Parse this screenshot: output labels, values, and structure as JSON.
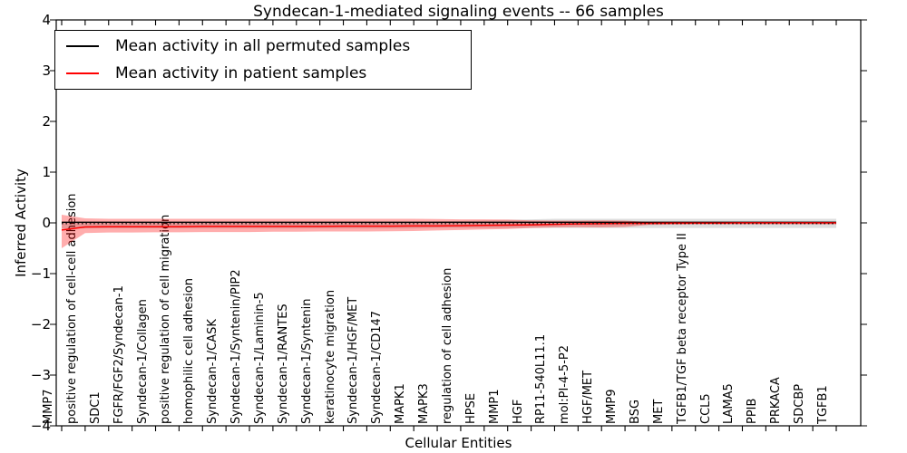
{
  "title": "Syndecan-1-mediated signaling events -- 66 samples",
  "axes": {
    "ylabel": "Inferred Activity",
    "xlabel": "Cellular Entities",
    "ytick_labels": [
      "4",
      "3",
      "2",
      "1",
      "0",
      "−1",
      "−2",
      "−3",
      "−4"
    ],
    "ylim": [
      -4,
      4
    ],
    "grid": false
  },
  "legend": {
    "position": "upper-left",
    "items": [
      {
        "label": "Mean activity in all permuted samples",
        "color": "#000000"
      },
      {
        "label": "Mean activity in patient samples",
        "color": "#ff0000"
      }
    ]
  },
  "chart_data": {
    "type": "line",
    "title": "Syndecan-1-mediated signaling events -- 66 samples",
    "xlabel": "Cellular Entities",
    "ylabel": "Inferred Activity",
    "ylim": [
      -4,
      4
    ],
    "legend_position": "upper left",
    "grid": false,
    "categories": [
      "MMP7",
      "positive regulation of cell-cell adhesion",
      "SDC1",
      "FGFR/FGF2/Syndecan-1",
      "Syndecan-1/Collagen",
      "positive regulation of cell migration",
      "homophilic cell adhesion",
      "Syndecan-1/CASK",
      "Syndecan-1/Syntenin/PIP2",
      "Syndecan-1/Laminin-5",
      "Syndecan-1/RANTES",
      "Syndecan-1/Syntenin",
      "keratinocyte migration",
      "Syndecan-1/HGF/MET",
      "Syndecan-1/CD147",
      "MAPK1",
      "MAPK3",
      "regulation of cell adhesion",
      "HPSE",
      "MMP1",
      "HGF",
      "RP11-540L11.1",
      "mol:PI-4-5-P2",
      "HGF/MET",
      "MMP9",
      "BSG",
      "MET",
      "TGFB1/TGF beta receptor Type II",
      "CCL5",
      "LAMA5",
      "PPIB",
      "PRKACA",
      "SDCBP",
      "TGFB1"
    ],
    "series": [
      {
        "name": "Mean activity in all permuted samples",
        "color": "#000000",
        "style": "solid",
        "values": [
          0,
          0,
          0,
          0,
          0,
          0,
          0,
          0,
          0,
          0,
          0,
          0,
          0,
          0,
          0,
          0,
          0,
          0,
          0,
          0,
          0,
          0,
          0,
          0,
          0,
          0,
          0,
          0,
          0,
          0,
          0,
          0,
          0,
          0
        ]
      },
      {
        "name": "Mean activity in patient samples",
        "color": "#ff0000",
        "style": "solid",
        "values": [
          -0.14,
          -0.08,
          -0.075,
          -0.075,
          -0.075,
          -0.075,
          -0.07,
          -0.07,
          -0.07,
          -0.07,
          -0.07,
          -0.07,
          -0.065,
          -0.065,
          -0.065,
          -0.06,
          -0.06,
          -0.055,
          -0.05,
          -0.045,
          -0.04,
          -0.03,
          -0.02,
          -0.015,
          -0.01,
          -0.01,
          -0.005,
          -0.005,
          -0.005,
          0,
          0,
          0,
          0,
          0
        ]
      }
    ],
    "bands": [
      {
        "name": "permuted-samples-std",
        "fill_color": "#000000",
        "fill_opacity": 0.13,
        "upper": [
          0.02,
          0.02,
          0.02,
          0.02,
          0.02,
          0.02,
          0.02,
          0.02,
          0.02,
          0.02,
          0.02,
          0.02,
          0.02,
          0.02,
          0.02,
          0.02,
          0.03,
          0.04,
          0.05,
          0.06,
          0.07,
          0.08,
          0.08,
          0.08,
          0.08,
          0.08,
          0.08,
          0.08,
          0.08,
          0.08,
          0.08,
          0.08,
          0.08,
          0.08
        ],
        "lower": [
          -0.11,
          -0.11,
          -0.11,
          -0.11,
          -0.11,
          -0.11,
          -0.11,
          -0.11,
          -0.11,
          -0.11,
          -0.11,
          -0.11,
          -0.11,
          -0.11,
          -0.11,
          -0.11,
          -0.1,
          -0.1,
          -0.1,
          -0.1,
          -0.1,
          -0.1,
          -0.1,
          -0.1,
          -0.1,
          -0.1,
          -0.1,
          -0.1,
          -0.1,
          -0.1,
          -0.1,
          -0.1,
          -0.1,
          -0.1
        ]
      },
      {
        "name": "patient-samples-std",
        "fill_color": "#ff0000",
        "fill_opacity": 0.32,
        "upper": [
          0.16,
          0.09,
          0.08,
          0.08,
          0.08,
          0.08,
          0.08,
          0.08,
          0.08,
          0.08,
          0.08,
          0.08,
          0.08,
          0.08,
          0.08,
          0.08,
          0.075,
          0.07,
          0.07,
          0.065,
          0.05,
          0.045,
          0.045,
          0.05,
          0.045,
          0.02,
          0.02,
          0.02,
          0.02,
          0.02,
          0.02,
          0.02,
          0.02,
          0.02
        ],
        "lower": [
          -0.5,
          -0.2,
          -0.19,
          -0.19,
          -0.185,
          -0.185,
          -0.18,
          -0.18,
          -0.18,
          -0.175,
          -0.175,
          -0.17,
          -0.17,
          -0.17,
          -0.165,
          -0.16,
          -0.15,
          -0.14,
          -0.13,
          -0.12,
          -0.1,
          -0.09,
          -0.085,
          -0.09,
          -0.08,
          -0.04,
          -0.035,
          -0.03,
          -0.03,
          -0.03,
          -0.03,
          -0.03,
          -0.03,
          -0.03
        ]
      }
    ],
    "zero_line": {
      "value": 0,
      "style": "dotted",
      "color": "#000000"
    }
  }
}
